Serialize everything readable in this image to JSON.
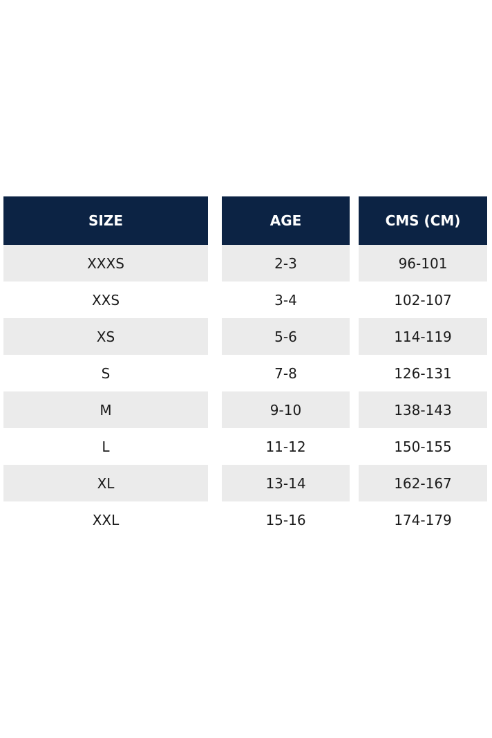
{
  "table": {
    "header": [
      "SIZE",
      "AGE",
      "CMS (CM)"
    ],
    "rows": [
      [
        "XXXS",
        "2-3",
        "96-101"
      ],
      [
        "XXS",
        "3-4",
        "102-107"
      ],
      [
        "XS",
        "5-6",
        "114-119"
      ],
      [
        "S",
        "7-8",
        "126-131"
      ],
      [
        "M",
        "9-10",
        "138-143"
      ],
      [
        "L",
        "11-12",
        "150-155"
      ],
      [
        "XL",
        "13-14",
        "162-167"
      ],
      [
        "XXL",
        "15-16",
        "174-179"
      ]
    ]
  }
}
